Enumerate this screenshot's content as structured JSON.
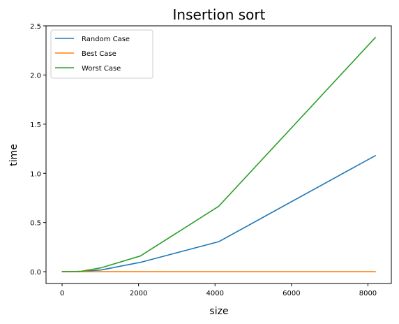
{
  "chart_data": {
    "type": "line",
    "title": "Insertion sort",
    "xlabel": "size",
    "ylabel": "time",
    "xlim": [
      -420,
      8612
    ],
    "ylim": [
      -0.12,
      2.5
    ],
    "x_ticks": [
      0,
      2000,
      4000,
      6000,
      8000
    ],
    "x_tick_labels": [
      "0",
      "2000",
      "4000",
      "6000",
      "8000"
    ],
    "y_ticks": [
      0.0,
      0.5,
      1.0,
      1.5,
      2.0,
      2.5
    ],
    "y_tick_labels": [
      "0.0",
      "0.5",
      "1.0",
      "1.5",
      "2.0",
      "2.5"
    ],
    "grid": false,
    "legend_position": "top-left",
    "x": [
      8,
      16,
      32,
      64,
      128,
      256,
      512,
      1024,
      2048,
      4096,
      8192
    ],
    "series": [
      {
        "name": "Random Case",
        "color": "#1f77b4",
        "values": [
          0.0,
          0.0,
          0.0,
          0.0,
          0.0001,
          0.0003,
          0.002,
          0.018,
          0.095,
          0.305,
          1.18
        ]
      },
      {
        "name": "Best Case",
        "color": "#ff7f0e",
        "values": [
          0.0,
          0.0,
          0.0,
          0.0,
          0.0,
          0.0,
          0.0,
          0.0,
          0.0,
          0.0,
          0.0
        ]
      },
      {
        "name": "Worst Case",
        "color": "#2ca02c",
        "values": [
          0.0,
          0.0,
          0.0,
          0.0,
          0.0002,
          0.0008,
          0.005,
          0.04,
          0.16,
          0.665,
          2.38
        ]
      }
    ]
  }
}
